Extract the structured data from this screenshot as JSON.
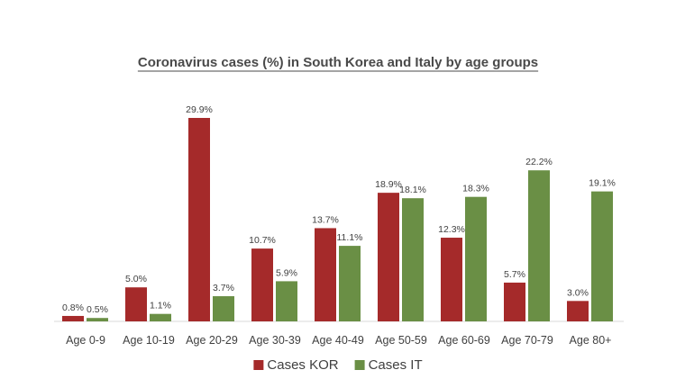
{
  "chart_data": {
    "type": "bar",
    "title": "Coronavirus cases (%) in South Korea and Italy by age groups",
    "categories": [
      "Age 0-9",
      "Age 10-19",
      "Age 20-29",
      "Age 30-39",
      "Age 40-49",
      "Age 50-59",
      "Age 60-69",
      "Age 70-79",
      "Age 80+"
    ],
    "series": [
      {
        "name": "Cases KOR",
        "color": "#a52a2a",
        "values": [
          0.8,
          5.0,
          29.9,
          10.7,
          13.7,
          18.9,
          12.3,
          5.7,
          3.0
        ],
        "labels": [
          "0.8%",
          "5.0%",
          "29.9%",
          "10.7%",
          "13.7%",
          "18.9%",
          "12.3%",
          "5.7%",
          "3.0%"
        ]
      },
      {
        "name": "Cases IT",
        "color": "#6a8f45",
        "values": [
          0.5,
          1.1,
          3.7,
          5.9,
          11.1,
          18.1,
          18.3,
          22.2,
          19.1
        ],
        "labels": [
          "0.5%",
          "1.1%",
          "3.7%",
          "5.9%",
          "11.1%",
          "18.1%",
          "18.3%",
          "22.2%",
          "19.1%"
        ]
      }
    ],
    "ylim": [
      0,
      30
    ],
    "grid": false,
    "legend_position": "bottom"
  }
}
